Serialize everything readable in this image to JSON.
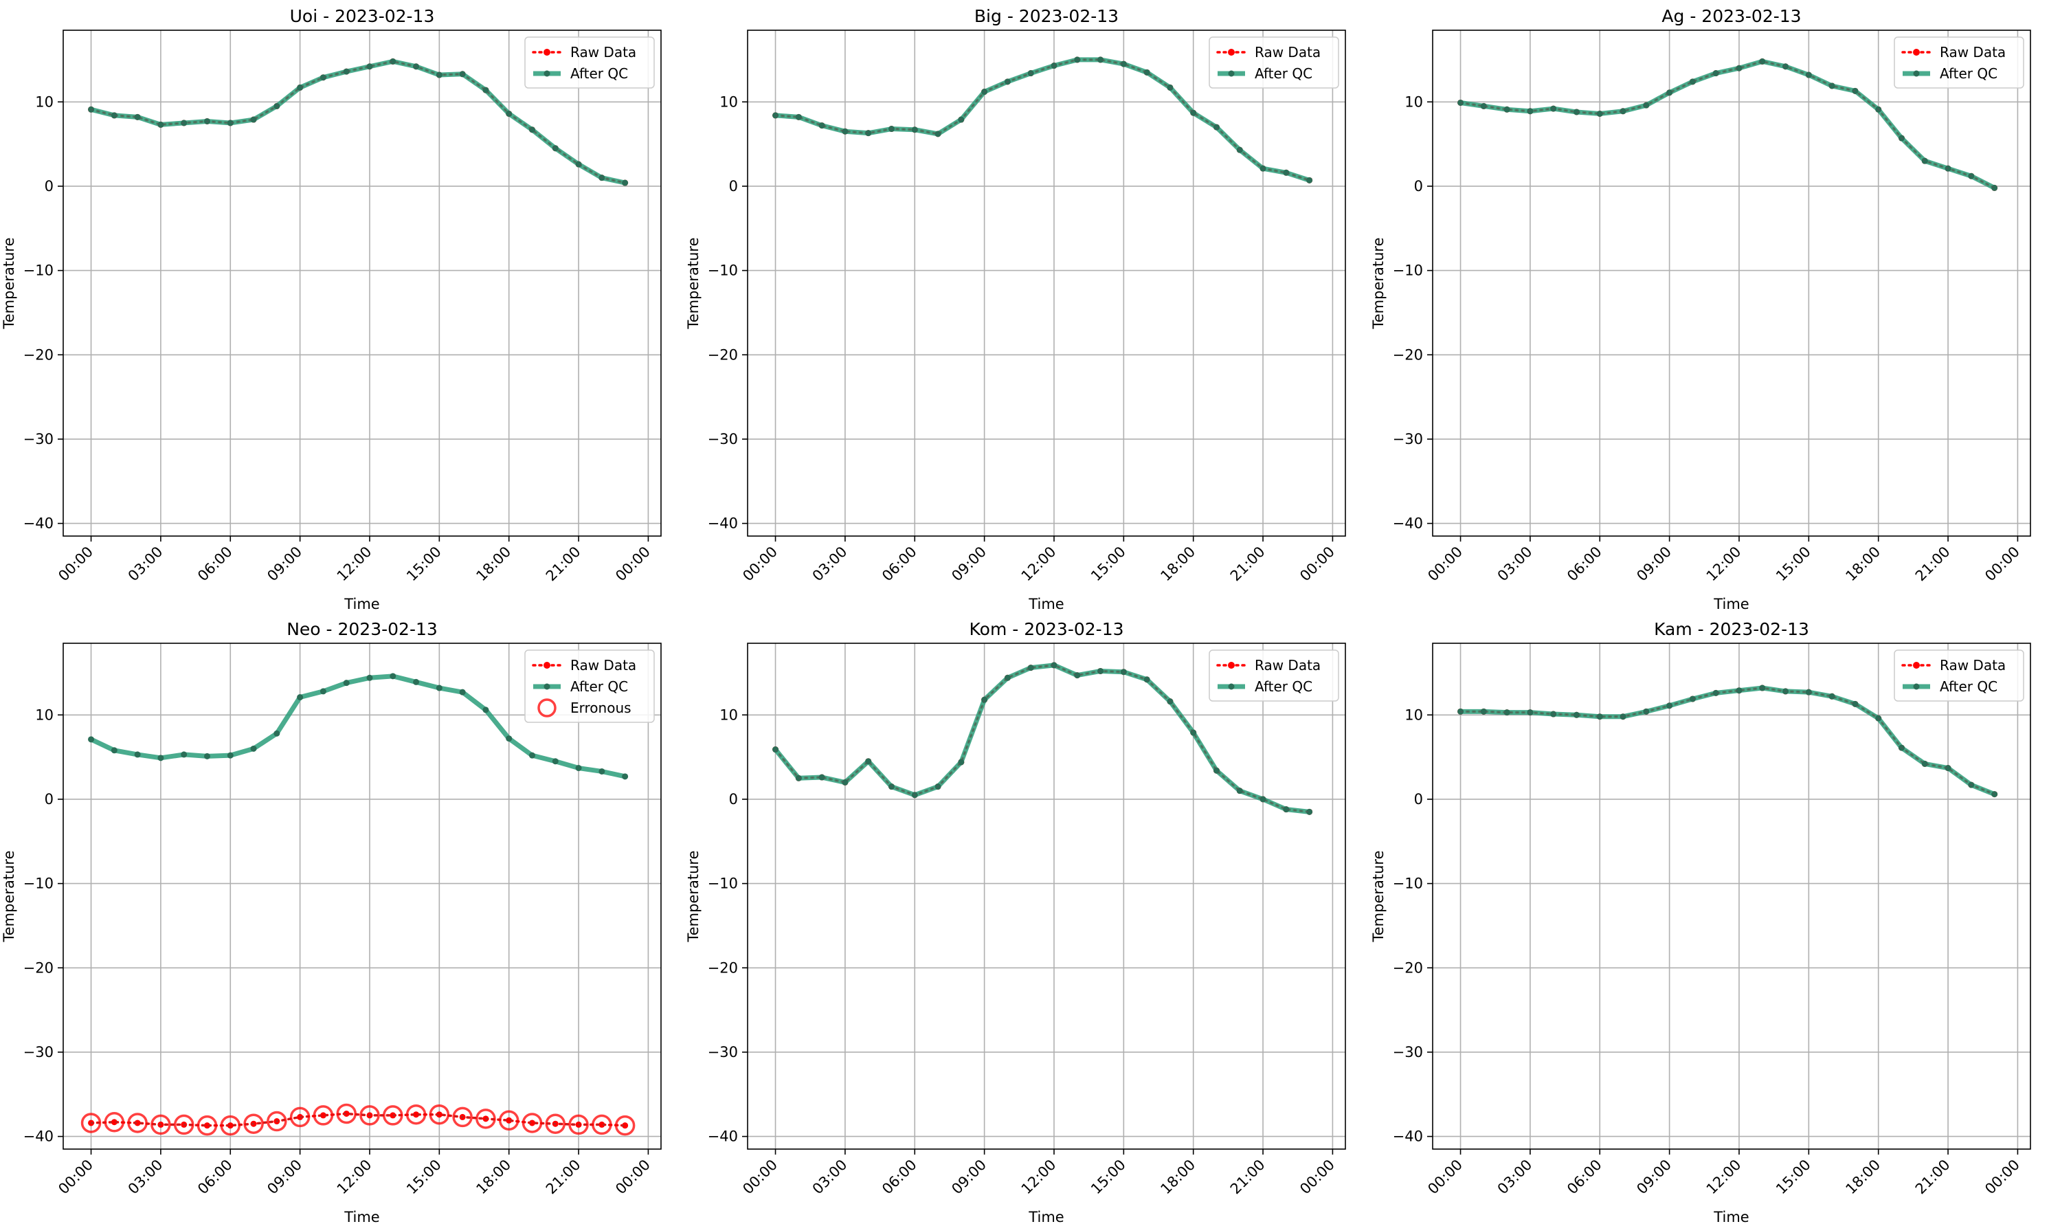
{
  "figure": {
    "x_tick_labels": [
      "00:00",
      "03:00",
      "06:00",
      "09:00",
      "12:00",
      "15:00",
      "18:00",
      "21:00",
      "00:00"
    ]
  },
  "chart_data": [
    {
      "type": "line",
      "title": "Uoi - 2023-02-13",
      "xlabel": "Time",
      "ylabel": "Temperature",
      "x": [
        "00:00",
        "01:00",
        "02:00",
        "03:00",
        "04:00",
        "05:00",
        "06:00",
        "07:00",
        "08:00",
        "09:00",
        "10:00",
        "11:00",
        "12:00",
        "13:00",
        "14:00",
        "15:00",
        "16:00",
        "17:00",
        "18:00",
        "19:00",
        "20:00",
        "21:00",
        "22:00",
        "23:00"
      ],
      "ylim": [
        -41.5,
        18.5
      ],
      "yticks": [
        -40,
        -30,
        -20,
        -10,
        0,
        10
      ],
      "grid": true,
      "legend": "top-right",
      "series": [
        {
          "name": "Raw Data",
          "style": "dotted",
          "color": "#ff0000",
          "values": [
            9.1,
            8.4,
            8.2,
            7.3,
            7.5,
            7.7,
            7.5,
            7.9,
            9.5,
            11.7,
            12.9,
            13.6,
            14.2,
            14.8,
            14.2,
            13.2,
            13.3,
            11.4,
            8.6,
            6.7,
            4.5,
            2.6,
            1.0,
            0.4
          ]
        },
        {
          "name": "After QC",
          "style": "solid",
          "color": "#2a9d7a",
          "values": [
            9.1,
            8.4,
            8.2,
            7.3,
            7.5,
            7.7,
            7.5,
            7.9,
            9.5,
            11.7,
            12.9,
            13.6,
            14.2,
            14.8,
            14.2,
            13.2,
            13.3,
            11.4,
            8.6,
            6.7,
            4.5,
            2.6,
            1.0,
            0.4
          ]
        }
      ]
    },
    {
      "type": "line",
      "title": "Big - 2023-02-13",
      "xlabel": "Time",
      "ylabel": "Temperature",
      "x": [
        "00:00",
        "01:00",
        "02:00",
        "03:00",
        "04:00",
        "05:00",
        "06:00",
        "07:00",
        "08:00",
        "09:00",
        "10:00",
        "11:00",
        "12:00",
        "13:00",
        "14:00",
        "15:00",
        "16:00",
        "17:00",
        "18:00",
        "19:00",
        "20:00",
        "21:00",
        "22:00",
        "23:00"
      ],
      "ylim": [
        -41.5,
        18.5
      ],
      "yticks": [
        -40,
        -30,
        -20,
        -10,
        0,
        10
      ],
      "grid": true,
      "legend": "top-right",
      "series": [
        {
          "name": "Raw Data",
          "style": "dotted",
          "color": "#ff0000",
          "values": [
            8.4,
            8.2,
            7.2,
            6.5,
            6.3,
            6.8,
            6.7,
            6.2,
            7.9,
            11.2,
            12.4,
            13.4,
            14.3,
            15.0,
            15.0,
            14.5,
            13.5,
            11.7,
            8.7,
            7.0,
            4.3,
            2.1,
            1.6,
            0.7
          ]
        },
        {
          "name": "After QC",
          "style": "solid",
          "color": "#2a9d7a",
          "values": [
            8.4,
            8.2,
            7.2,
            6.5,
            6.3,
            6.8,
            6.7,
            6.2,
            7.9,
            11.2,
            12.4,
            13.4,
            14.3,
            15.0,
            15.0,
            14.5,
            13.5,
            11.7,
            8.7,
            7.0,
            4.3,
            2.1,
            1.6,
            0.7
          ]
        }
      ]
    },
    {
      "type": "line",
      "title": "Ag - 2023-02-13",
      "xlabel": "Time",
      "ylabel": "Temperature",
      "x": [
        "00:00",
        "01:00",
        "02:00",
        "03:00",
        "04:00",
        "05:00",
        "06:00",
        "07:00",
        "08:00",
        "09:00",
        "10:00",
        "11:00",
        "12:00",
        "13:00",
        "14:00",
        "15:00",
        "16:00",
        "17:00",
        "18:00",
        "19:00",
        "20:00",
        "21:00",
        "22:00",
        "23:00"
      ],
      "ylim": [
        -41.5,
        18.5
      ],
      "yticks": [
        -40,
        -30,
        -20,
        -10,
        0,
        10
      ],
      "grid": true,
      "legend": "top-right",
      "series": [
        {
          "name": "Raw Data",
          "style": "dotted",
          "color": "#ff0000",
          "values": [
            9.9,
            9.5,
            9.1,
            8.9,
            9.2,
            8.8,
            8.6,
            8.9,
            9.6,
            11.1,
            12.4,
            13.4,
            14.0,
            14.8,
            14.2,
            13.2,
            11.9,
            11.3,
            9.1,
            5.7,
            3.0,
            2.1,
            1.2,
            -0.2
          ]
        },
        {
          "name": "After QC",
          "style": "solid",
          "color": "#2a9d7a",
          "values": [
            9.9,
            9.5,
            9.1,
            8.9,
            9.2,
            8.8,
            8.6,
            8.9,
            9.6,
            11.1,
            12.4,
            13.4,
            14.0,
            14.8,
            14.2,
            13.2,
            11.9,
            11.3,
            9.1,
            5.7,
            3.0,
            2.1,
            1.2,
            -0.2
          ]
        }
      ]
    },
    {
      "type": "line",
      "title": "Neo - 2023-02-13",
      "xlabel": "Time",
      "ylabel": "Temperature",
      "x": [
        "00:00",
        "01:00",
        "02:00",
        "03:00",
        "04:00",
        "05:00",
        "06:00",
        "07:00",
        "08:00",
        "09:00",
        "10:00",
        "11:00",
        "12:00",
        "13:00",
        "14:00",
        "15:00",
        "16:00",
        "17:00",
        "18:00",
        "19:00",
        "20:00",
        "21:00",
        "22:00",
        "23:00"
      ],
      "ylim": [
        -41.5,
        18.5
      ],
      "yticks": [
        -40,
        -30,
        -20,
        -10,
        0,
        10
      ],
      "grid": true,
      "legend": "top-right",
      "series": [
        {
          "name": "Raw Data",
          "style": "dotted",
          "color": "#ff0000",
          "values": [
            -38.4,
            -38.3,
            -38.4,
            -38.6,
            -38.6,
            -38.7,
            -38.7,
            -38.5,
            -38.2,
            -37.7,
            -37.5,
            -37.3,
            -37.5,
            -37.5,
            -37.4,
            -37.4,
            -37.7,
            -37.9,
            -38.1,
            -38.4,
            -38.5,
            -38.6,
            -38.6,
            -38.7
          ]
        },
        {
          "name": "After QC",
          "style": "solid",
          "color": "#2a9d7a",
          "values": [
            7.1,
            5.8,
            5.3,
            4.9,
            5.3,
            5.1,
            5.2,
            6.0,
            7.8,
            12.1,
            12.8,
            13.8,
            14.4,
            14.6,
            13.9,
            13.2,
            12.7,
            10.6,
            7.2,
            5.2,
            4.5,
            3.7,
            3.3,
            2.7
          ]
        },
        {
          "name": "Erronous",
          "style": "circle",
          "color": "#ff0000",
          "values": [
            -38.4,
            -38.3,
            -38.4,
            -38.6,
            -38.6,
            -38.7,
            -38.7,
            -38.5,
            -38.2,
            -37.7,
            -37.5,
            -37.3,
            -37.5,
            -37.5,
            -37.4,
            -37.4,
            -37.7,
            -37.9,
            -38.1,
            -38.4,
            -38.5,
            -38.6,
            -38.6,
            -38.7
          ]
        }
      ]
    },
    {
      "type": "line",
      "title": "Kom - 2023-02-13",
      "xlabel": "Time",
      "ylabel": "Temperature",
      "x": [
        "00:00",
        "01:00",
        "02:00",
        "03:00",
        "04:00",
        "05:00",
        "06:00",
        "07:00",
        "08:00",
        "09:00",
        "10:00",
        "11:00",
        "12:00",
        "13:00",
        "14:00",
        "15:00",
        "16:00",
        "17:00",
        "18:00",
        "19:00",
        "20:00",
        "21:00",
        "22:00",
        "23:00"
      ],
      "ylim": [
        -41.5,
        18.5
      ],
      "yticks": [
        -40,
        -30,
        -20,
        -10,
        0,
        10
      ],
      "grid": true,
      "legend": "top-right",
      "series": [
        {
          "name": "Raw Data",
          "style": "dotted",
          "color": "#ff0000",
          "values": [
            5.9,
            2.5,
            2.6,
            2.0,
            4.5,
            1.5,
            0.5,
            1.5,
            4.4,
            11.8,
            14.4,
            15.6,
            15.9,
            14.7,
            15.2,
            15.1,
            14.2,
            11.6,
            7.9,
            3.4,
            1.0,
            0.0,
            -1.2,
            -1.5
          ]
        },
        {
          "name": "After QC",
          "style": "solid",
          "color": "#2a9d7a",
          "values": [
            5.9,
            2.5,
            2.6,
            2.0,
            4.5,
            1.5,
            0.5,
            1.5,
            4.4,
            11.8,
            14.4,
            15.6,
            15.9,
            14.7,
            15.2,
            15.1,
            14.2,
            11.6,
            7.9,
            3.4,
            1.0,
            0.0,
            -1.2,
            -1.5
          ]
        }
      ]
    },
    {
      "type": "line",
      "title": "Kam - 2023-02-13",
      "xlabel": "Time",
      "ylabel": "Temperature",
      "x": [
        "00:00",
        "01:00",
        "02:00",
        "03:00",
        "04:00",
        "05:00",
        "06:00",
        "07:00",
        "08:00",
        "09:00",
        "10:00",
        "11:00",
        "12:00",
        "13:00",
        "14:00",
        "15:00",
        "16:00",
        "17:00",
        "18:00",
        "19:00",
        "20:00",
        "21:00",
        "22:00",
        "23:00"
      ],
      "ylim": [
        -41.5,
        18.5
      ],
      "yticks": [
        -40,
        -30,
        -20,
        -10,
        0,
        10
      ],
      "grid": true,
      "legend": "top-right",
      "series": [
        {
          "name": "Raw Data",
          "style": "dotted",
          "color": "#ff0000",
          "values": [
            10.4,
            10.4,
            10.3,
            10.3,
            10.1,
            10.0,
            9.8,
            9.8,
            10.4,
            11.1,
            11.9,
            12.6,
            12.9,
            13.2,
            12.8,
            12.7,
            12.2,
            11.3,
            9.6,
            6.1,
            4.2,
            3.7,
            1.7,
            0.6
          ]
        },
        {
          "name": "After QC",
          "style": "solid",
          "color": "#2a9d7a",
          "values": [
            10.4,
            10.4,
            10.3,
            10.3,
            10.1,
            10.0,
            9.8,
            9.8,
            10.4,
            11.1,
            11.9,
            12.6,
            12.9,
            13.2,
            12.8,
            12.7,
            12.2,
            11.3,
            9.6,
            6.1,
            4.2,
            3.7,
            1.7,
            0.6
          ]
        }
      ]
    }
  ]
}
